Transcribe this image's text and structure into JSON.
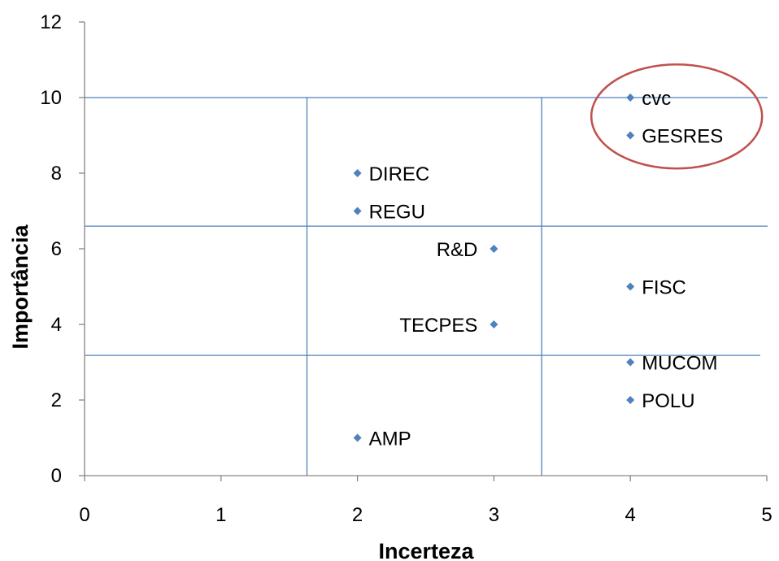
{
  "chart_data": {
    "type": "scatter",
    "title": "",
    "xlabel": "Incerteza",
    "ylabel": "Importância",
    "xlim": [
      0,
      5
    ],
    "ylim": [
      0,
      12
    ],
    "x_ticks": [
      0,
      1,
      2,
      3,
      4,
      5
    ],
    "y_ticks": [
      0,
      2,
      4,
      6,
      8,
      10,
      12
    ],
    "grid": false,
    "legend": "none",
    "marker": "diamond",
    "colors": {
      "marker": "#4f81bd",
      "ref_lines": "#4f81bd",
      "highlight": "#c0504d"
    },
    "points": [
      {
        "label": "cvc",
        "x": 4,
        "y": 10,
        "label_side": "right"
      },
      {
        "label": "GESRES",
        "x": 4,
        "y": 9,
        "label_side": "right"
      },
      {
        "label": "DIREC",
        "x": 2,
        "y": 8,
        "label_side": "right"
      },
      {
        "label": "REGU",
        "x": 2,
        "y": 7,
        "label_side": "right"
      },
      {
        "label": "R&D",
        "x": 3,
        "y": 6,
        "label_side": "left"
      },
      {
        "label": "FISC",
        "x": 4,
        "y": 5,
        "label_side": "right"
      },
      {
        "label": "TECPES",
        "x": 3,
        "y": 4,
        "label_side": "left"
      },
      {
        "label": "MUCOM",
        "x": 4,
        "y": 3,
        "label_side": "right"
      },
      {
        "label": "POLU",
        "x": 4,
        "y": 2,
        "label_side": "right"
      },
      {
        "label": "AMP",
        "x": 2,
        "y": 1,
        "label_side": "right"
      }
    ],
    "reference_lines": {
      "vertical_x": [
        1.63,
        3.35
      ],
      "horizontal_y": [
        10,
        6.6,
        3.18
      ]
    },
    "highlight": {
      "type": "ellipse",
      "encloses": [
        "cvc",
        "GESRES"
      ]
    }
  }
}
